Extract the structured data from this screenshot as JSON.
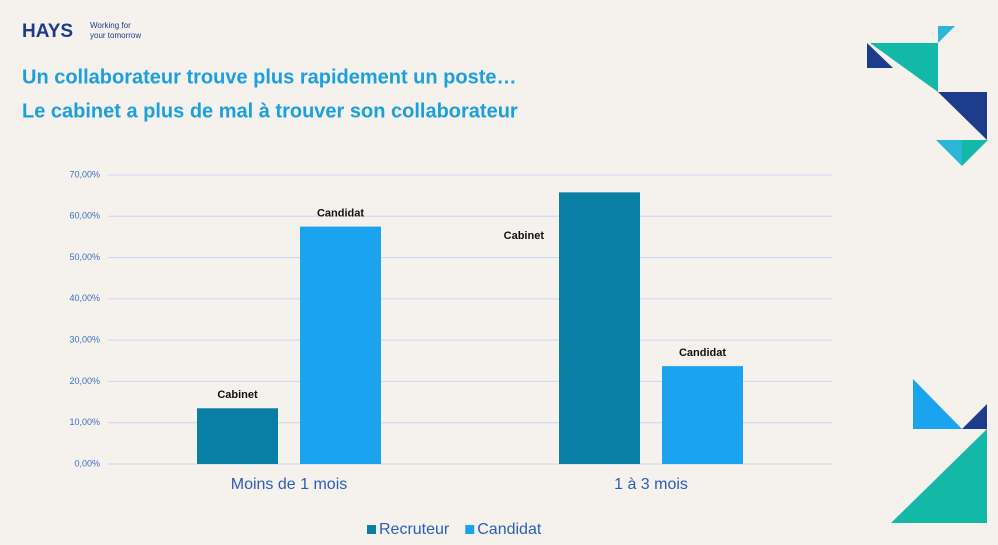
{
  "header": {
    "logo": "HAYS",
    "tagline": [
      "Working for",
      "your tomorrow"
    ]
  },
  "chart_data": {
    "type": "bar",
    "title": "Un collaborateur trouve plus rapidement un poste…",
    "subtitle": "Le cabinet a plus de mal à trouver son collaborateur",
    "categories": [
      "Moins de 1 mois",
      "1 à 3 mois"
    ],
    "series": [
      {
        "name": "Recruteur",
        "color": "#0a7fa6",
        "values": [
          13.5,
          65.8
        ],
        "bar_labels": [
          "Cabinet",
          "Cabinet"
        ]
      },
      {
        "name": "Candidat",
        "color": "#1aa3ef",
        "values": [
          57.5,
          23.7
        ],
        "bar_labels": [
          "Candidat",
          "Candidat"
        ]
      }
    ],
    "ylim": [
      0,
      70
    ],
    "yticks": [
      {
        "value": 0,
        "label": "0,00%"
      },
      {
        "value": 10,
        "label": "10,00%"
      },
      {
        "value": 20,
        "label": "20,00%"
      },
      {
        "value": 30,
        "label": "30,00%"
      },
      {
        "value": 40,
        "label": "40,00%"
      },
      {
        "value": 50,
        "label": "50,00%"
      },
      {
        "value": 60,
        "label": "60,00%"
      },
      {
        "value": 70,
        "label": "70,00%"
      }
    ],
    "grid": true,
    "legend": "bottom"
  }
}
